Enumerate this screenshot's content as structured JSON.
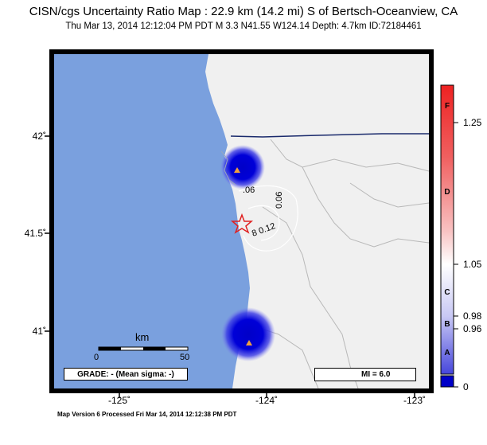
{
  "header": {
    "title": "CISN/cgs Uncertainty Ratio Map : 22.9 km (14.2 mi) S of Bertsch-Oceanview, CA",
    "subtitle": "Thu Mar 13, 2014 12:12:04 PM PDT   M 3.3   N41.55 W124.14   Depth: 4.7km   ID:72184461"
  },
  "map": {
    "lat_labels": [
      "42˚",
      "41.5˚",
      "41˚"
    ],
    "lon_labels": [
      "-125˚",
      "-124˚",
      "-123˚"
    ],
    "contour_labels": [
      ".06",
      "0.06",
      "8 0.12"
    ],
    "scale_bar": {
      "unit": "km",
      "min_label": "0",
      "max_label": "50"
    },
    "grade_box": "GRADE: - (Mean sigma: -)",
    "mi_legend": "MI = 6.0",
    "colors": {
      "ocean": "#7aa0de",
      "land": "#f0f0f0",
      "uncertainty_blue": "#0000cc",
      "epicenter": "#e02020",
      "border": "#1a2a6c"
    }
  },
  "colorbar": {
    "tick_labels": [
      "1.25",
      "1.05",
      "0.98",
      "0.96",
      "0"
    ],
    "letter_labels": [
      "F",
      "D",
      "C",
      "B",
      "A"
    ]
  },
  "footer": "Map Version 6 Processed Fri Mar 14, 2014 12:12:38 PM PDT"
}
